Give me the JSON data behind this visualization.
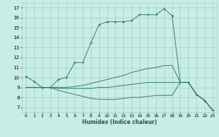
{
  "xlabel": "Humidex (Indice chaleur)",
  "bg_color": "#c8ece6",
  "grid_color": "#9dcfc7",
  "line_color": "#2e7d6e",
  "xlim": [
    -0.5,
    23.5
  ],
  "ylim": [
    6.5,
    17.5
  ],
  "xticks": [
    0,
    1,
    2,
    3,
    4,
    5,
    6,
    7,
    8,
    9,
    10,
    11,
    12,
    13,
    14,
    15,
    16,
    17,
    18,
    19,
    20,
    21,
    22,
    23
  ],
  "yticks": [
    7,
    8,
    9,
    10,
    11,
    12,
    13,
    14,
    15,
    16,
    17
  ],
  "line1_x": [
    0,
    1,
    2,
    3,
    4,
    5,
    6,
    7,
    8,
    9,
    10,
    11,
    12,
    13,
    14,
    15,
    16,
    17,
    18,
    19,
    20,
    21,
    22,
    23
  ],
  "line1_y": [
    10.1,
    9.6,
    9.0,
    9.0,
    9.8,
    10.0,
    11.5,
    11.5,
    13.5,
    15.3,
    15.6,
    15.6,
    15.6,
    15.7,
    16.3,
    16.3,
    16.3,
    16.9,
    16.2,
    9.5,
    9.5,
    8.3,
    7.7,
    6.7
  ],
  "line2_x": [
    0,
    1,
    2,
    3,
    4,
    5,
    6,
    7,
    8,
    9,
    10,
    11,
    12,
    13,
    14,
    15,
    16,
    17,
    18,
    19,
    20,
    21,
    22,
    23
  ],
  "line2_y": [
    9.0,
    9.0,
    9.0,
    9.0,
    9.0,
    9.0,
    9.1,
    9.2,
    9.4,
    9.6,
    9.8,
    10.0,
    10.2,
    10.5,
    10.7,
    10.9,
    11.0,
    11.2,
    11.2,
    9.5,
    9.5,
    8.3,
    7.7,
    6.7
  ],
  "line3_x": [
    0,
    1,
    2,
    3,
    4,
    5,
    6,
    7,
    8,
    9,
    10,
    11,
    12,
    13,
    14,
    15,
    16,
    17,
    18,
    19,
    20,
    21,
    22,
    23
  ],
  "line3_y": [
    9.0,
    9.0,
    9.0,
    9.0,
    8.9,
    8.9,
    8.9,
    8.9,
    8.9,
    9.0,
    9.0,
    9.1,
    9.2,
    9.3,
    9.4,
    9.5,
    9.5,
    9.5,
    9.5,
    9.5,
    9.5,
    8.3,
    7.7,
    6.7
  ],
  "line4_x": [
    0,
    1,
    2,
    3,
    4,
    5,
    6,
    7,
    8,
    9,
    10,
    11,
    12,
    13,
    14,
    15,
    16,
    17,
    18,
    19,
    20,
    21,
    22,
    23
  ],
  "line4_y": [
    9.0,
    9.0,
    9.0,
    9.0,
    8.7,
    8.5,
    8.3,
    8.1,
    7.9,
    7.8,
    7.8,
    7.8,
    7.9,
    8.0,
    8.0,
    8.1,
    8.2,
    8.2,
    8.2,
    9.5,
    9.5,
    8.3,
    7.7,
    6.7
  ]
}
